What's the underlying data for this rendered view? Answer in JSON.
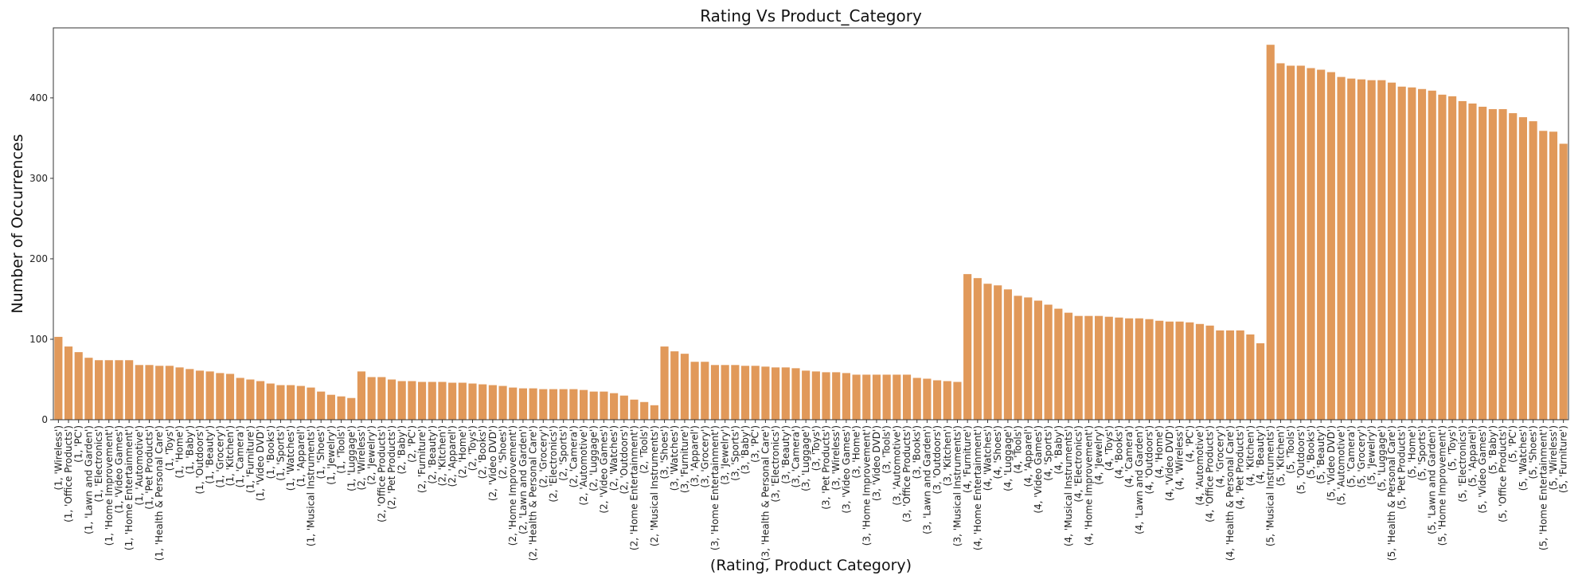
{
  "chart_data": {
    "type": "bar",
    "title": "Rating Vs Product_Category",
    "xlabel": "(Rating, Product Category)",
    "ylabel": "Number of Occurrences",
    "ylim": [
      0,
      487
    ],
    "yticks": [
      0,
      100,
      200,
      300,
      400
    ],
    "grid": false,
    "bar_color": "#e1995a",
    "categories": [
      "(1, 'Wireless')",
      "(1, 'Office Products')",
      "(1, 'PC')",
      "(1, 'Lawn and Garden')",
      "(1, 'Electronics')",
      "(1, 'Home Improvement')",
      "(1, 'Video Games')",
      "(1, 'Home Entertainment')",
      "(1, 'Automotive')",
      "(1, 'Pet Products')",
      "(1, 'Health & Personal Care')",
      "(1, 'Toys')",
      "(1, 'Home')",
      "(1, 'Baby')",
      "(1, 'Outdoors')",
      "(1, 'Beauty')",
      "(1, 'Grocery')",
      "(1, 'Kitchen')",
      "(1, 'Camera')",
      "(1, 'Furniture')",
      "(1, 'Video DVD')",
      "(1, 'Books')",
      "(1, 'Sports')",
      "(1, 'Watches')",
      "(1, 'Apparel')",
      "(1, 'Musical Instruments')",
      "(1, 'Shoes')",
      "(1, 'Jewelry')",
      "(1, 'Tools')",
      "(1, 'Luggage')",
      "(2, 'Wireless')",
      "(2, 'Jewelry')",
      "(2, 'Office Products')",
      "(2, 'Pet Products')",
      "(2, 'Baby')",
      "(2, 'PC')",
      "(2, 'Furniture')",
      "(2, 'Beauty')",
      "(2, 'Kitchen')",
      "(2, 'Apparel')",
      "(2, 'Home')",
      "(2, 'Toys')",
      "(2, 'Books')",
      "(2, 'Video DVD')",
      "(2, 'Shoes')",
      "(2, 'Home Improvement')",
      "(2, 'Lawn and Garden')",
      "(2, 'Health & Personal Care')",
      "(2, 'Grocery')",
      "(2, 'Electronics')",
      "(2, 'Sports')",
      "(2, 'Camera')",
      "(2, 'Automotive')",
      "(2, 'Luggage')",
      "(2, 'Video Games')",
      "(2, 'Watches')",
      "(2, 'Outdoors')",
      "(2, 'Home Entertainment')",
      "(2, 'Tools')",
      "(2, 'Musical Instruments')",
      "(3, 'Shoes')",
      "(3, 'Watches')",
      "(3, 'Furniture')",
      "(3, 'Apparel')",
      "(3, 'Grocery')",
      "(3, 'Home Entertainment')",
      "(3, 'Jewelry')",
      "(3, 'Sports')",
      "(3, 'Baby')",
      "(3, 'PC')",
      "(3, 'Health & Personal Care')",
      "(3, 'Electronics')",
      "(3, 'Beauty')",
      "(3, 'Camera')",
      "(3, 'Luggage')",
      "(3, 'Toys')",
      "(3, 'Pet Products')",
      "(3, 'Wireless')",
      "(3, 'Video Games')",
      "(3, 'Home')",
      "(3, 'Home Improvement')",
      "(3, 'Video DVD')",
      "(3, 'Tools')",
      "(3, 'Automotive')",
      "(3, 'Office Products')",
      "(3, 'Books')",
      "(3, 'Lawn and Garden')",
      "(3, 'Outdoors')",
      "(3, 'Kitchen')",
      "(3, 'Musical Instruments')",
      "(4, 'Furniture')",
      "(4, 'Home Entertainment')",
      "(4, 'Watches')",
      "(4, 'Shoes')",
      "(4, 'Luggage')",
      "(4, 'Tools')",
      "(4, 'Apparel')",
      "(4, 'Video Games')",
      "(4, 'Sports')",
      "(4, 'Baby')",
      "(4, 'Musical Instruments')",
      "(4, 'Electronics')",
      "(4, 'Home Improvement')",
      "(4, 'Jewelry')",
      "(4, 'Toys')",
      "(4, 'Books')",
      "(4, 'Camera')",
      "(4, 'Lawn and Garden')",
      "(4, 'Outdoors')",
      "(4, 'Home')",
      "(4, 'Video DVD')",
      "(4, 'Wireless')",
      "(4, 'PC')",
      "(4, 'Automotive')",
      "(4, 'Office Products')",
      "(4, 'Grocery')",
      "(4, 'Health & Personal Care')",
      "(4, 'Pet Products')",
      "(4, 'Kitchen')",
      "(4, 'Beauty')",
      "(5, 'Musical Instruments')",
      "(5, 'Kitchen')",
      "(5, 'Tools')",
      "(5, 'Outdoors')",
      "(5, 'Books')",
      "(5, 'Beauty')",
      "(5, 'Video DVD')",
      "(5, 'Automotive')",
      "(5, 'Camera')",
      "(5, 'Grocery')",
      "(5, 'Jewelry')",
      "(5, 'Luggage')",
      "(5, 'Health & Personal Care')",
      "(5, 'Pet Products')",
      "(5, 'Home')",
      "(5, 'Sports')",
      "(5, 'Lawn and Garden')",
      "(5, 'Home Improvement')",
      "(5, 'Toys')",
      "(5, 'Electronics')",
      "(5, 'Apparel')",
      "(5, 'Video Games')",
      "(5, 'Baby')",
      "(5, 'Office Products')",
      "(5, 'PC')",
      "(5, 'Watches')",
      "(5, 'Shoes')",
      "(5, 'Home Entertainment')",
      "(5, 'Wireless')",
      "(5, 'Furniture')"
    ],
    "values": [
      103,
      91,
      84,
      77,
      74,
      74,
      74,
      74,
      68,
      68,
      67,
      67,
      65,
      63,
      61,
      60,
      58,
      57,
      52,
      50,
      48,
      45,
      43,
      43,
      42,
      40,
      35,
      31,
      29,
      27,
      60,
      53,
      53,
      50,
      48,
      48,
      47,
      47,
      47,
      46,
      46,
      45,
      44,
      43,
      42,
      40,
      39,
      39,
      38,
      38,
      38,
      38,
      37,
      35,
      35,
      33,
      30,
      25,
      22,
      18,
      91,
      85,
      82,
      72,
      72,
      68,
      68,
      68,
      67,
      67,
      66,
      65,
      65,
      64,
      61,
      60,
      59,
      59,
      58,
      56,
      56,
      56,
      56,
      56,
      56,
      52,
      51,
      49,
      48,
      47,
      181,
      176,
      169,
      167,
      162,
      154,
      152,
      148,
      143,
      138,
      133,
      129,
      129,
      129,
      128,
      127,
      126,
      126,
      125,
      123,
      122,
      122,
      121,
      119,
      117,
      111,
      111,
      111,
      106,
      95,
      466,
      443,
      440,
      440,
      437,
      435,
      432,
      426,
      424,
      423,
      422,
      422,
      419,
      414,
      413,
      411,
      409,
      404,
      402,
      396,
      393,
      389,
      386,
      386,
      381,
      376,
      371,
      359,
      358,
      343
    ]
  }
}
